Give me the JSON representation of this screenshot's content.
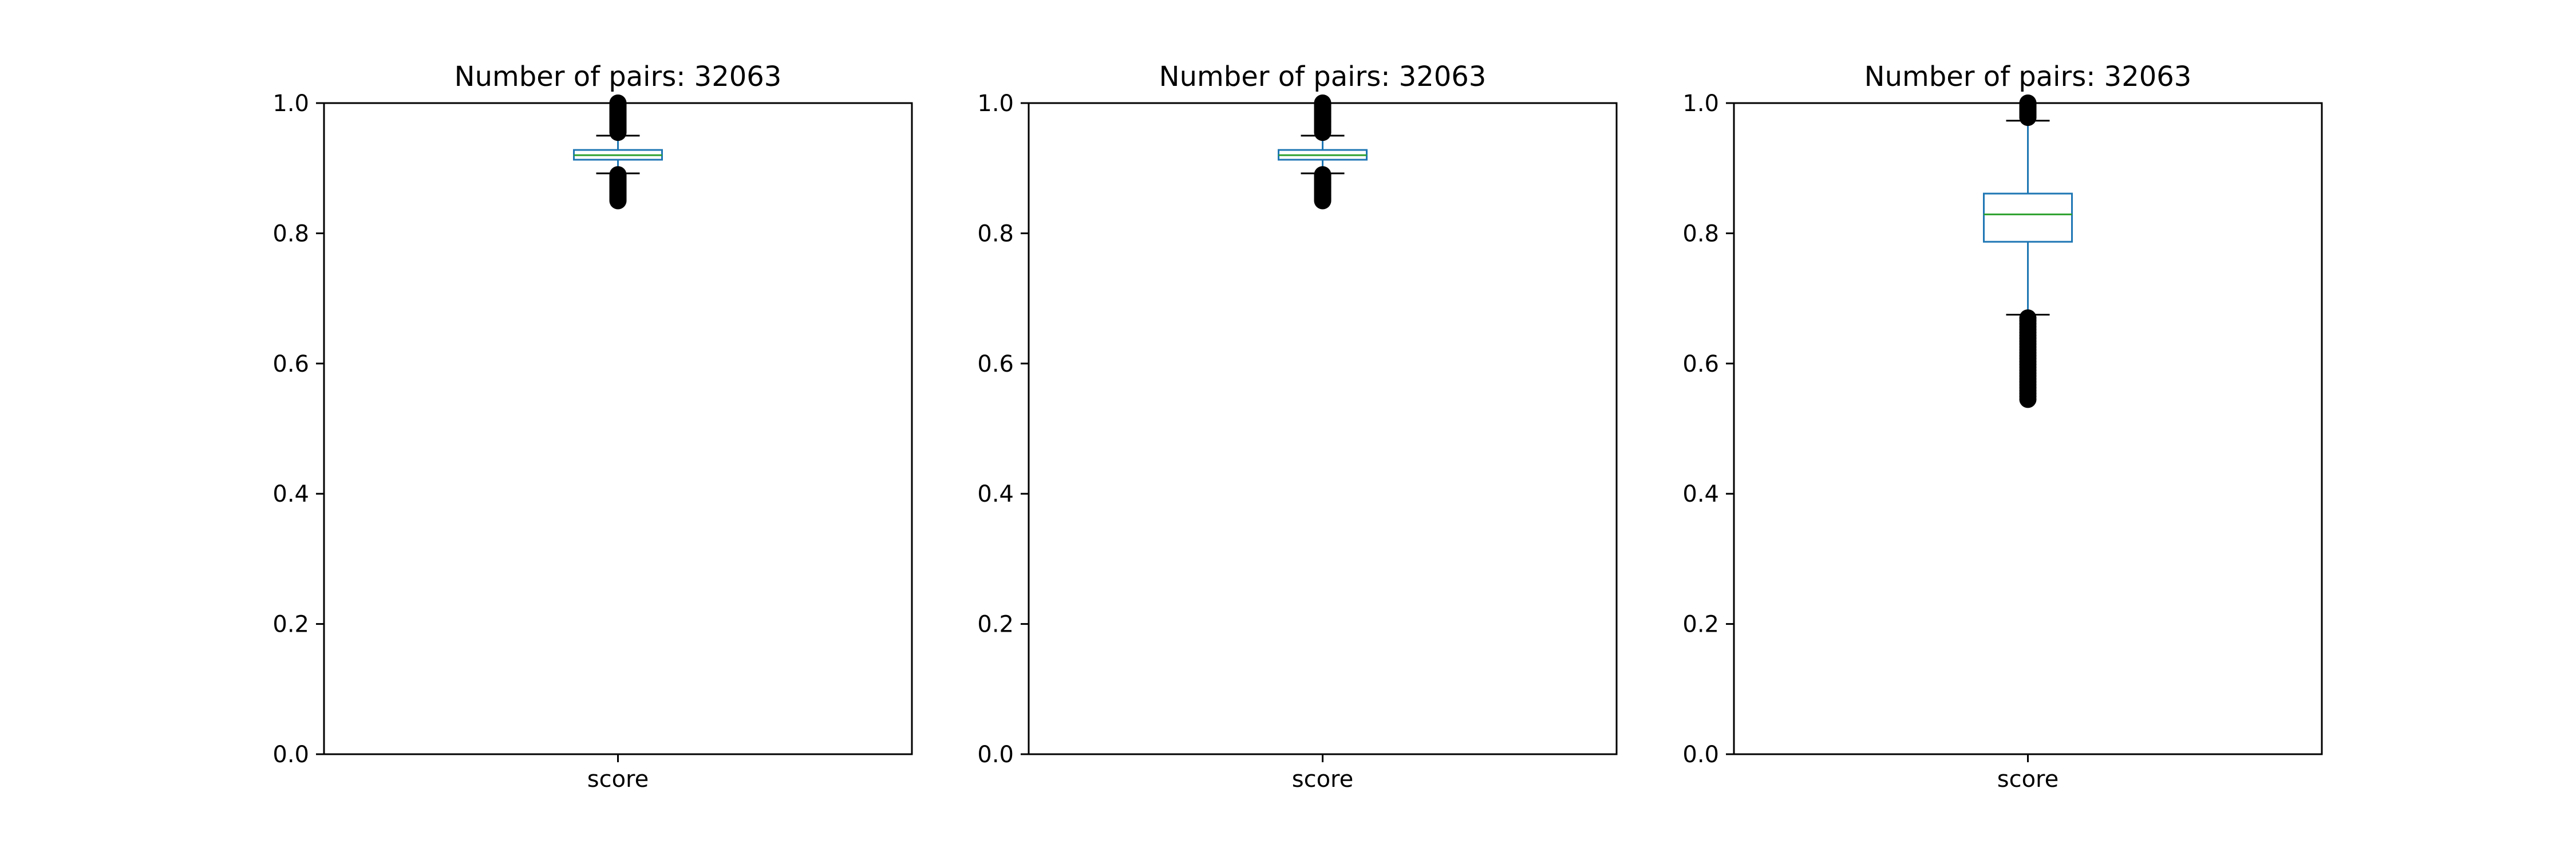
{
  "chart_data": [
    {
      "type": "box",
      "title": "Number of pairs: 32063",
      "categories": [
        "score"
      ],
      "ylim": [
        0,
        1
      ],
      "yticks": [
        0.0,
        0.2,
        0.4,
        0.6,
        0.8,
        1.0
      ],
      "ytick_labels": [
        "0.0",
        "0.2",
        "0.4",
        "0.6",
        "0.8",
        "1.0"
      ],
      "grid": false,
      "box": {
        "whisker_low": 0.892,
        "q1": 0.913,
        "median": 0.92,
        "q3": 0.928,
        "whisker_high": 0.95,
        "outliers_low_range": [
          0.85,
          0.89
        ],
        "outliers_high_range": [
          0.955,
          1.0
        ]
      }
    },
    {
      "type": "box",
      "title": "Number of pairs: 32063",
      "categories": [
        "score"
      ],
      "ylim": [
        0,
        1
      ],
      "yticks": [
        0.0,
        0.2,
        0.4,
        0.6,
        0.8,
        1.0
      ],
      "ytick_labels": [
        "0.0",
        "0.2",
        "0.4",
        "0.6",
        "0.8",
        "1.0"
      ],
      "grid": false,
      "box": {
        "whisker_low": 0.892,
        "q1": 0.913,
        "median": 0.92,
        "q3": 0.928,
        "whisker_high": 0.95,
        "outliers_low_range": [
          0.85,
          0.89
        ],
        "outliers_high_range": [
          0.955,
          1.0
        ]
      }
    },
    {
      "type": "box",
      "title": "Number of pairs: 32063",
      "categories": [
        "score"
      ],
      "ylim": [
        0,
        1
      ],
      "yticks": [
        0.0,
        0.2,
        0.4,
        0.6,
        0.8,
        1.0
      ],
      "ytick_labels": [
        "0.0",
        "0.2",
        "0.4",
        "0.6",
        "0.8",
        "1.0"
      ],
      "grid": false,
      "box": {
        "whisker_low": 0.675,
        "q1": 0.787,
        "median": 0.829,
        "q3": 0.861,
        "whisker_high": 0.973,
        "outliers_low_range": [
          0.545,
          0.67
        ],
        "outliers_high_range": [
          0.978,
          1.0
        ]
      }
    }
  ],
  "colors": {
    "box": "#1f77b4",
    "median": "#2ca02c",
    "whisker_cap": "#000000",
    "outlier": "#000000",
    "axes": "#000000"
  }
}
